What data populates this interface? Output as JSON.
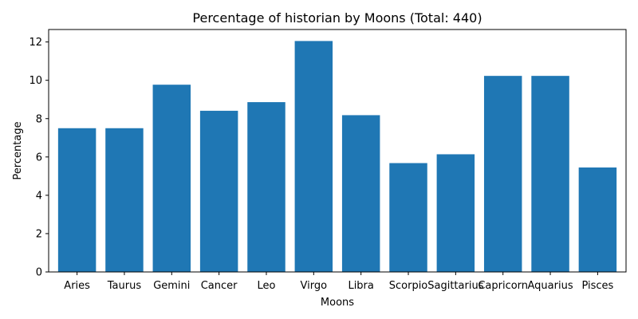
{
  "chart_data": {
    "type": "bar",
    "title": "Percentage of historian by Moons (Total: 440)",
    "xlabel": "Moons",
    "ylabel": "Percentage",
    "categories": [
      "Aries",
      "Taurus",
      "Gemini",
      "Cancer",
      "Leo",
      "Virgo",
      "Libra",
      "Scorpio",
      "Sagittarius",
      "Capricorn",
      "Aquarius",
      "Pisces"
    ],
    "values": [
      7.5,
      7.5,
      9.77,
      8.41,
      8.86,
      12.05,
      8.18,
      5.68,
      6.14,
      10.23,
      10.23,
      5.45
    ],
    "ylim": [
      0,
      12.65
    ],
    "yticks": [
      0,
      2,
      4,
      6,
      8,
      10,
      12
    ],
    "bar_color": "#1f77b4",
    "grid": false,
    "legend": "none"
  }
}
